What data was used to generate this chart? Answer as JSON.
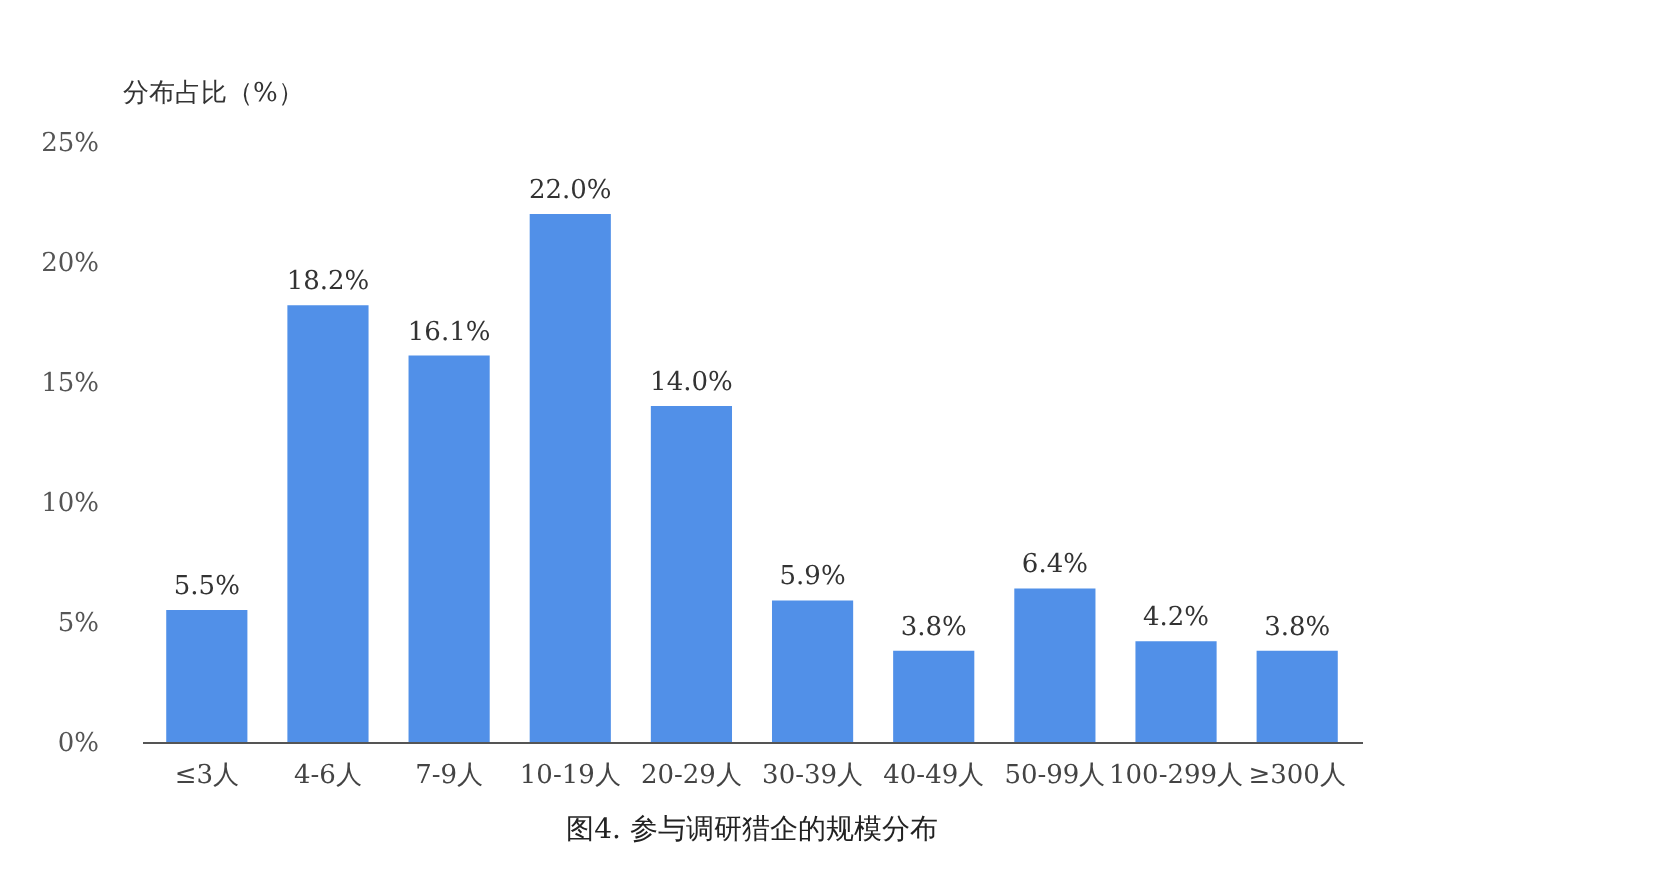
{
  "chart_data": {
    "type": "bar",
    "title": "图4. 参与调研猎企的规模分布",
    "ylabel": "分布占比（%）",
    "categories": [
      "≤3人",
      "4-6人",
      "7-9人",
      "10-19人",
      "20-29人",
      "30-39人",
      "40-49人",
      "50-99人",
      "100-299人",
      "≥300人"
    ],
    "values": [
      5.5,
      18.2,
      16.1,
      22.0,
      14.0,
      5.9,
      3.8,
      6.4,
      4.2,
      3.8
    ],
    "value_labels": [
      "5.5%",
      "18.2%",
      "16.1%",
      "22.0%",
      "14.0%",
      "5.9%",
      "3.8%",
      "6.4%",
      "4.2%",
      "3.8%"
    ],
    "color": "#5190e8",
    "ylim": [
      0,
      25
    ],
    "yticks": [
      {
        "value": 0,
        "label": "0%"
      },
      {
        "value": 5,
        "label": "5%"
      },
      {
        "value": 10,
        "label": "10%"
      },
      {
        "value": 15,
        "label": "15%"
      },
      {
        "value": 20,
        "label": "20%"
      },
      {
        "value": 25,
        "label": "25%"
      }
    ],
    "grid": false
  }
}
